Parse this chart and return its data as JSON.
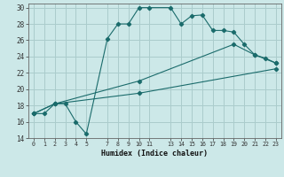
{
  "xlabel": "Humidex (Indice chaleur)",
  "bg_color": "#cce8e8",
  "grid_color": "#aacccc",
  "line_color": "#1a6b6b",
  "xlim": [
    -0.5,
    23.5
  ],
  "ylim": [
    14,
    30.5
  ],
  "xticks": [
    0,
    1,
    2,
    3,
    4,
    5,
    7,
    8,
    9,
    10,
    11,
    13,
    14,
    15,
    16,
    17,
    18,
    19,
    20,
    21,
    22,
    23
  ],
  "yticks": [
    14,
    16,
    18,
    20,
    22,
    24,
    26,
    28,
    30
  ],
  "line1_x": [
    0,
    1,
    2,
    3,
    4,
    5,
    7,
    8,
    9,
    10,
    11,
    13,
    14,
    15,
    16,
    17,
    18,
    19,
    20,
    21,
    22,
    23
  ],
  "line1_y": [
    17,
    17,
    18.2,
    18.2,
    16,
    14.5,
    26.2,
    28,
    28,
    30,
    30,
    30,
    28,
    29,
    29.1,
    27.2,
    27.2,
    27,
    25.5,
    24.2,
    23.8,
    23.2
  ],
  "line2_x": [
    0,
    2,
    10,
    19,
    21,
    23
  ],
  "line2_y": [
    17,
    18.2,
    21,
    25.5,
    24.2,
    23.2
  ],
  "line3_x": [
    0,
    2,
    10,
    23
  ],
  "line3_y": [
    17,
    18.2,
    19.5,
    22.5
  ]
}
